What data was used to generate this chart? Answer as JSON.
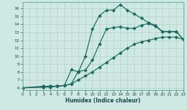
{
  "xlabel": "Humidex (Indice chaleur)",
  "background_color": "#cee8e4",
  "grid_color": "#b0c8c4",
  "line_color": "#1a6b5e",
  "xlim": [
    0,
    23
  ],
  "ylim": [
    5.7,
    16.8
  ],
  "xticks": [
    0,
    1,
    2,
    3,
    4,
    5,
    6,
    7,
    8,
    9,
    10,
    11,
    12,
    13,
    14,
    15,
    16,
    17,
    18,
    19,
    20,
    21,
    22,
    23
  ],
  "yticks": [
    6,
    7,
    8,
    9,
    10,
    11,
    12,
    13,
    14,
    15,
    16
  ],
  "line1_x": [
    0,
    3,
    4,
    5,
    6,
    7,
    8,
    9,
    10,
    11,
    12,
    13,
    14,
    15,
    16,
    17,
    18,
    19,
    20,
    21,
    22,
    23
  ],
  "line1_y": [
    6,
    6.2,
    6.2,
    6.2,
    6.3,
    8.3,
    8.0,
    10.0,
    13.4,
    15.1,
    15.8,
    15.8,
    16.5,
    15.8,
    15.3,
    14.8,
    14.2,
    13.9,
    13.1,
    13.1,
    13.1,
    12.1
  ],
  "line2_x": [
    0,
    3,
    4,
    5,
    6,
    7,
    8,
    9,
    10,
    11,
    12,
    13,
    14,
    15,
    16,
    17,
    18,
    19,
    20,
    21,
    22,
    23
  ],
  "line2_y": [
    6,
    6.1,
    6.2,
    6.2,
    6.3,
    6.5,
    8.1,
    8.2,
    9.5,
    11.5,
    13.4,
    13.6,
    13.7,
    13.5,
    13.5,
    13.9,
    14.1,
    13.8,
    13.1,
    13.1,
    13.1,
    12.1
  ],
  "line3_x": [
    0,
    3,
    4,
    5,
    6,
    7,
    8,
    9,
    10,
    11,
    12,
    13,
    14,
    15,
    16,
    17,
    18,
    19,
    20,
    21,
    22,
    23
  ],
  "line3_y": [
    6,
    6.1,
    6.1,
    6.2,
    6.3,
    6.5,
    7.0,
    7.5,
    8.0,
    8.6,
    9.2,
    9.8,
    10.4,
    11.0,
    11.5,
    11.8,
    12.0,
    12.2,
    12.4,
    12.4,
    12.4,
    12.1
  ],
  "markersize": 2.5,
  "linewidth": 0.9
}
